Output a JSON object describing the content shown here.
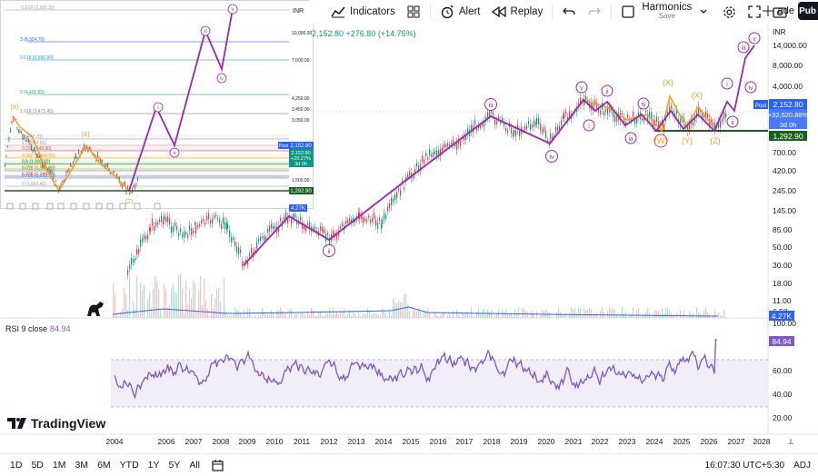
{
  "toolbar": {
    "indicators_label": "Indicators",
    "alert_label": "Alert",
    "replay_label": "Replay",
    "layout_name": "Harmonics",
    "layout_status": "Save",
    "trade_label": "ade",
    "publish_label": "Pub"
  },
  "main_chart": {
    "currency": "INR",
    "price_change_text": "2,152.80 +276.80 (+14.75%)",
    "y_ticks": [
      "14,000.00",
      "8,000.00",
      "4,000.00",
      "2,152.80",
      "1,292.90",
      "700.00",
      "420.00",
      "245.00",
      "145.00",
      "85.00",
      "50.00",
      "30.00",
      "18.00",
      "11.00",
      "6.50",
      "4.27K"
    ],
    "last_price": "2,152.80",
    "last_price_pct": "+32,620.88%",
    "countdown": "3d 0h",
    "support_price": "1,292.90",
    "post_label": "Post",
    "volume_label": "4.27K",
    "x_ticks": [
      "2004",
      "2006",
      "2007",
      "2008",
      "2009",
      "2010",
      "2011",
      "2012",
      "2013",
      "2014",
      "2015",
      "2016",
      "2017",
      "2018",
      "2019",
      "2020",
      "2021",
      "2022",
      "2023",
      "2024",
      "2025",
      "2026",
      "2027",
      "2028"
    ]
  },
  "wave_labels": [
    "i",
    "ii",
    "iii",
    "iv",
    "v",
    "i",
    "ii",
    "iii",
    "iv",
    "v",
    "(X)",
    "(X)",
    "(W)",
    "(Y)",
    "(Z)",
    "i",
    "ii",
    "iii",
    "iv",
    "v"
  ],
  "inset_chart": {
    "fib_levels": [
      "1.618 (3,471.45)",
      "2 (4,400.85)",
      "2.618 (6,556.90)",
      "3 (8,324.70)",
      "0 (447.70)",
      "0.236 (742.30)",
      "0.382 (1,004.00)",
      "0.5 (1,190.10)",
      "0.618 (1,362.00)",
      "0.786 (1,593.70)",
      "1 (1,844.00)",
      "0.5 (1,507.70)",
      "0.382 (1,601.00)",
      "0.236 (1,744.90)",
      "0 (1,955.40)",
      "-0.618 (2,309.35)"
    ],
    "y_ticks": [
      "10,000.00",
      "7,000.00",
      "4,250.00",
      "3,450.00",
      "3,050.00",
      "2,152.80",
      "1,500.00",
      "1,292.90"
    ],
    "currency": "INR",
    "last_price": "2,152.80",
    "last_pct": "+20.27%",
    "countdown": "3d 0h",
    "support": "1,292.90",
    "volume": "4.27K",
    "post_label": "Post"
  },
  "rsi": {
    "title": "RSI 9 close",
    "value": "84.94",
    "y_ticks": [
      "100.00",
      "80.00",
      "60.00",
      "40.00",
      "20.00"
    ]
  },
  "bottom_bar": {
    "ranges": [
      "1D",
      "5D",
      "1M",
      "3M",
      "6M",
      "YTD",
      "1Y",
      "5Y",
      "All"
    ],
    "time": "16:07:30 UTC+5:30",
    "adj_label": "ADJ"
  },
  "brand": {
    "name": "TradingView"
  },
  "colors": {
    "wave_line": "#9c27b0",
    "orange_wave": "#f0a020",
    "up": "#089981",
    "down": "#f23645",
    "rsi": "#7e57c2",
    "support_line": "#1b5e20"
  }
}
